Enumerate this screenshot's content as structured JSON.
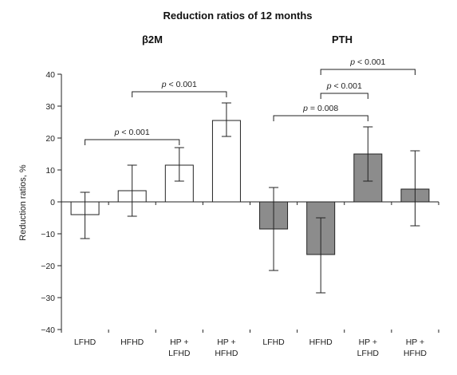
{
  "chart_data": {
    "type": "bar",
    "title": "Reduction ratios of 12 months",
    "ylabel": "Reduction ratios, %",
    "xlabel": "",
    "ylim": [
      -40,
      40
    ],
    "yticks": [
      40,
      30,
      20,
      10,
      0,
      -10,
      -20,
      -30,
      -40
    ],
    "yticks_text": [
      "40",
      "30",
      "20",
      "10",
      "0",
      "−10",
      "−20",
      "−30",
      "−40"
    ],
    "grid": false,
    "colors": {
      "white_bar": "#ffffff",
      "gray_bar": "#8c8c8c",
      "stroke": "#222222"
    },
    "panels": [
      {
        "name": "β2M",
        "fill": "white",
        "categories": [
          [
            "LFHD"
          ],
          [
            "HFHD"
          ],
          [
            "HP +",
            "LFHD"
          ],
          [
            "HP +",
            "HFHD"
          ]
        ],
        "values": [
          -4,
          3.5,
          11.5,
          25.5
        ],
        "error_low": [
          -11.5,
          -4.5,
          6.5,
          20.5
        ],
        "error_high": [
          3,
          11.5,
          17,
          31
        ]
      },
      {
        "name": "PTH",
        "fill": "gray",
        "categories": [
          [
            "LFHD"
          ],
          [
            "HFHD"
          ],
          [
            "HP +",
            "LFHD"
          ],
          [
            "HP +",
            "HFHD"
          ]
        ],
        "values": [
          -8.5,
          -16.5,
          15,
          4
        ],
        "error_low": [
          -21.5,
          -28.5,
          6.5,
          -7.5
        ],
        "error_high": [
          4.5,
          -5,
          23.5,
          16
        ]
      }
    ],
    "significance": [
      {
        "from": 0,
        "to": 2,
        "label_prefix": "p",
        "label_rest": " < 0.001",
        "bracket_y": 19.5
      },
      {
        "from": 1,
        "to": 3,
        "label_prefix": "p",
        "label_rest": " < 0.001",
        "bracket_y": 34.5
      },
      {
        "from": 4,
        "to": 6,
        "label_prefix": "p",
        "label_rest": " = 0.008",
        "bracket_y": 27
      },
      {
        "from": 5,
        "to": 6,
        "label_prefix": "p",
        "label_rest": " < 0.001",
        "bracket_y": 34
      },
      {
        "from": 5,
        "to": 7,
        "label_prefix": "p",
        "label_rest": " < 0.001",
        "bracket_y": 41.5
      }
    ]
  }
}
